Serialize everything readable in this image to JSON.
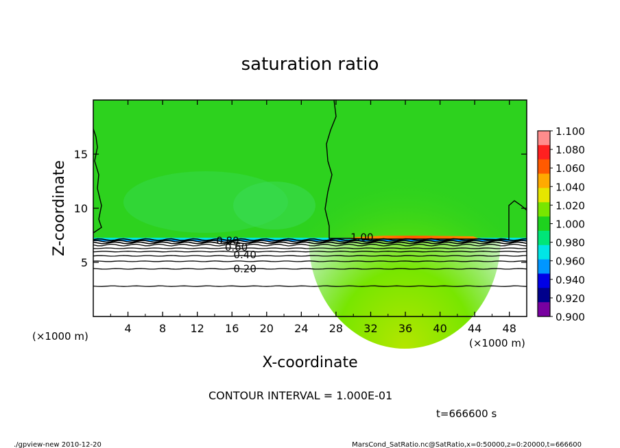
{
  "chart_data": {
    "type": "heatmap",
    "title": "saturation ratio",
    "xlabel": "X-coordinate",
    "ylabel": "Z-coordinate",
    "x_unit_left": "(×1000 m)",
    "x_unit_right": "(×1000 m)",
    "xlim": [
      0,
      50
    ],
    "ylim": [
      0,
      20
    ],
    "x_ticks": [
      4,
      8,
      12,
      16,
      20,
      24,
      28,
      32,
      36,
      40,
      44,
      48
    ],
    "y_ticks": [
      5,
      10,
      15
    ],
    "colorbar": {
      "levels": [
        "1.100",
        "1.080",
        "1.060",
        "1.040",
        "1.020",
        "1.000",
        "0.980",
        "0.960",
        "0.940",
        "0.920",
        "0.900"
      ],
      "colors": [
        "#ff8c8c",
        "#ff2020",
        "#ff5a00",
        "#ffaa00",
        "#e6e600",
        "#78e600",
        "#1ed21e",
        "#00e678",
        "#00e6e6",
        "#0096ff",
        "#0000e6",
        "#00008c",
        "#7800a0"
      ]
    },
    "contour_labels": [
      {
        "text": "1.00",
        "x": 31,
        "z": 7.3
      },
      {
        "text": "0.80",
        "x": 15.5,
        "z": 7.0
      },
      {
        "text": "0.60",
        "x": 16.5,
        "z": 6.4
      },
      {
        "text": "0.40",
        "x": 17.5,
        "z": 5.7
      },
      {
        "text": "0.20",
        "x": 17.5,
        "z": 4.4
      }
    ],
    "contour_levels_z": [
      7.1,
      6.95,
      6.8,
      6.6,
      6.3,
      6.0,
      5.6,
      5.1,
      4.4,
      2.8
    ],
    "contour_interval_text": "CONTOUR INTERVAL = 1.000E-01",
    "time_text": "t=666600 s",
    "footer_left": "./gpview-new   2010-12-20",
    "footer_right": "MarsCond_SatRatio.nc@SatRatio,x=0:50000,z=0:20000,t=666600"
  }
}
